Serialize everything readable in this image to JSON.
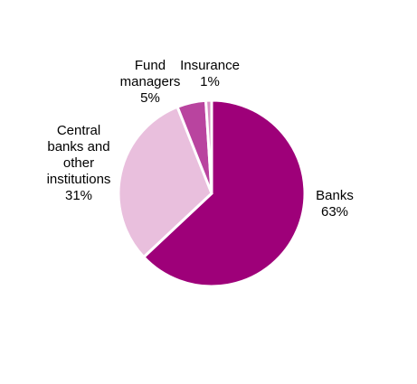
{
  "chart_data": {
    "type": "pie",
    "title": "",
    "slices": [
      {
        "label_lines": [
          "Banks"
        ],
        "value": 63,
        "value_label": "63%",
        "color": "#9e0079"
      },
      {
        "label_lines": [
          "Central",
          "banks and",
          "other",
          "institutions"
        ],
        "value": 31,
        "value_label": "31%",
        "color": "#e9bfdd"
      },
      {
        "label_lines": [
          "Fund",
          "managers"
        ],
        "value": 5,
        "value_label": "5%",
        "color": "#b9449f"
      },
      {
        "label_lines": [
          "Insurance"
        ],
        "value": 1,
        "value_label": "1%",
        "color": "#d88fc4"
      }
    ]
  }
}
